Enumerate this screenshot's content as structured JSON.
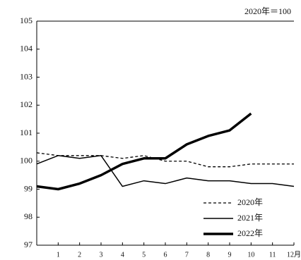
{
  "chart_data": {
    "type": "line",
    "annotation": "2020年＝100",
    "x": [
      0,
      1,
      2,
      3,
      4,
      5,
      6,
      7,
      8,
      9,
      10,
      11,
      12
    ],
    "series": [
      {
        "name": "2020年",
        "color": "#000000",
        "dash": true,
        "width": 1.3,
        "values": [
          100.3,
          100.2,
          100.2,
          100.2,
          100.1,
          100.2,
          100.0,
          100.0,
          99.8,
          99.8,
          99.9,
          99.9,
          99.9
        ]
      },
      {
        "name": "2021年",
        "color": "#000000",
        "dash": false,
        "width": 1.5,
        "values": [
          99.9,
          100.2,
          100.1,
          100.2,
          99.1,
          99.3,
          99.2,
          99.4,
          99.3,
          99.3,
          99.2,
          99.2,
          99.1
        ]
      },
      {
        "name": "2022年",
        "color": "#000000",
        "dash": false,
        "width": 3.5,
        "values": [
          99.1,
          99.0,
          99.2,
          99.5,
          99.9,
          100.1,
          100.1,
          100.6,
          100.9,
          101.1,
          101.7,
          null,
          null
        ]
      }
    ],
    "xlim": [
      0,
      12
    ],
    "xticks": [
      1,
      2,
      3,
      4,
      5,
      6,
      7,
      8,
      9,
      10,
      11,
      {
        "value": 12,
        "label": "12月"
      }
    ],
    "ylim": [
      97,
      105
    ],
    "yticks": [
      97,
      98,
      99,
      100,
      101,
      102,
      103,
      104,
      105
    ],
    "legend": "lower right"
  }
}
